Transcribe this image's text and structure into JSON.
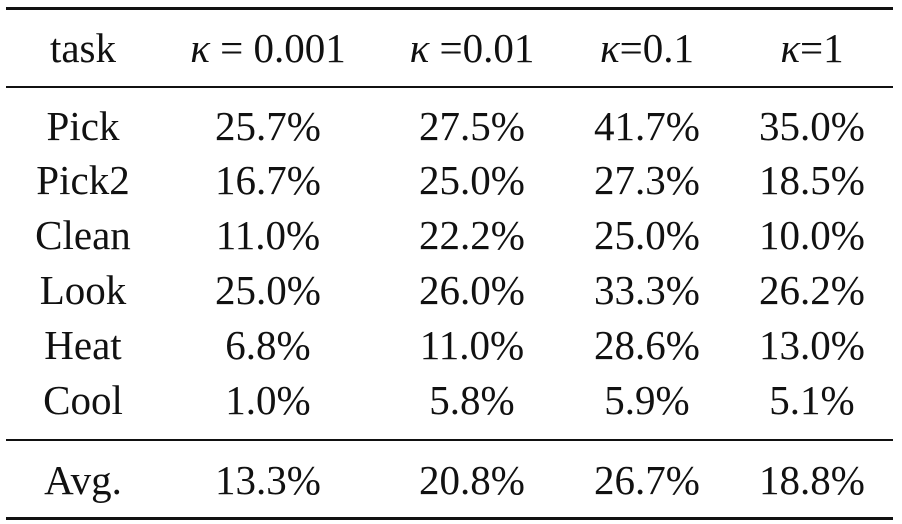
{
  "table": {
    "header": {
      "task": "task",
      "col1_symbol": "κ",
      "col1_rest": " = 0.001",
      "col2_symbol": "κ",
      "col2_rest": " =0.01",
      "col3_symbol": "κ",
      "col3_rest": "=0.1",
      "col4_symbol": "κ",
      "col4_rest": "=1"
    },
    "rows": [
      {
        "task": "Pick",
        "v1": "25.7%",
        "v2": "27.5%",
        "v3": "41.7%",
        "v4": "35.0%"
      },
      {
        "task": "Pick2",
        "v1": "16.7%",
        "v2": "25.0%",
        "v3": "27.3%",
        "v4": "18.5%"
      },
      {
        "task": "Clean",
        "v1": "11.0%",
        "v2": "22.2%",
        "v3": "25.0%",
        "v4": "10.0%"
      },
      {
        "task": "Look",
        "v1": "25.0%",
        "v2": "26.0%",
        "v3": "33.3%",
        "v4": "26.2%"
      },
      {
        "task": "Heat",
        "v1": "6.8%",
        "v2": "11.0%",
        "v3": "28.6%",
        "v4": "13.0%"
      },
      {
        "task": "Cool",
        "v1": "1.0%",
        "v2": "5.8%",
        "v3": "5.9%",
        "v4": "5.1%"
      }
    ],
    "average": {
      "task": "Avg.",
      "v1": "13.3%",
      "v2": "20.8%",
      "v3": "26.7%",
      "v4": "18.8%"
    }
  }
}
